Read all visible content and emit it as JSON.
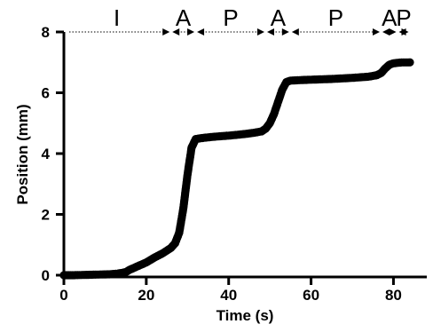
{
  "chart_data": {
    "type": "scatter",
    "title": "",
    "xlabel": "Time (s)",
    "ylabel": "Position (mm)",
    "xlim": [
      0,
      84
    ],
    "ylim": [
      0,
      8
    ],
    "xticks": [
      0,
      20,
      40,
      60,
      80
    ],
    "yticks": [
      0,
      2,
      4,
      6,
      8
    ],
    "grid": false,
    "series": [
      {
        "color": "#000000",
        "points": [
          [
            0,
            0
          ],
          [
            2,
            0
          ],
          [
            5,
            0.01
          ],
          [
            8,
            0.02
          ],
          [
            11,
            0.03
          ],
          [
            13,
            0.05
          ],
          [
            15,
            0.1
          ],
          [
            16,
            0.18
          ],
          [
            18,
            0.3
          ],
          [
            20,
            0.42
          ],
          [
            22,
            0.58
          ],
          [
            24,
            0.72
          ],
          [
            26,
            0.9
          ],
          [
            27,
            1.05
          ],
          [
            28,
            1.4
          ],
          [
            29,
            2.2
          ],
          [
            30,
            3.3
          ],
          [
            31,
            4.2
          ],
          [
            32,
            4.48
          ],
          [
            34,
            4.52
          ],
          [
            37,
            4.56
          ],
          [
            40,
            4.59
          ],
          [
            43,
            4.63
          ],
          [
            46,
            4.68
          ],
          [
            48,
            4.73
          ],
          [
            49,
            4.82
          ],
          [
            50,
            5.0
          ],
          [
            51,
            5.3
          ],
          [
            52,
            5.7
          ],
          [
            53,
            6.1
          ],
          [
            54,
            6.35
          ],
          [
            55,
            6.4
          ],
          [
            58,
            6.42
          ],
          [
            62,
            6.44
          ],
          [
            66,
            6.46
          ],
          [
            70,
            6.49
          ],
          [
            74,
            6.53
          ],
          [
            76,
            6.58
          ],
          [
            77,
            6.65
          ],
          [
            78,
            6.8
          ],
          [
            79,
            6.92
          ],
          [
            80,
            6.97
          ],
          [
            82,
            7.0
          ],
          [
            84,
            7.0
          ]
        ]
      }
    ],
    "phases": [
      {
        "label": "I",
        "start": 0,
        "end": 26
      },
      {
        "label": "A",
        "start": 26,
        "end": 32
      },
      {
        "label": "P",
        "start": 32,
        "end": 49
      },
      {
        "label": "A",
        "start": 49,
        "end": 55
      },
      {
        "label": "P",
        "start": 55,
        "end": 77
      },
      {
        "label": "A",
        "start": 77,
        "end": 81
      },
      {
        "label": "P",
        "start": 81,
        "end": 84
      }
    ]
  }
}
